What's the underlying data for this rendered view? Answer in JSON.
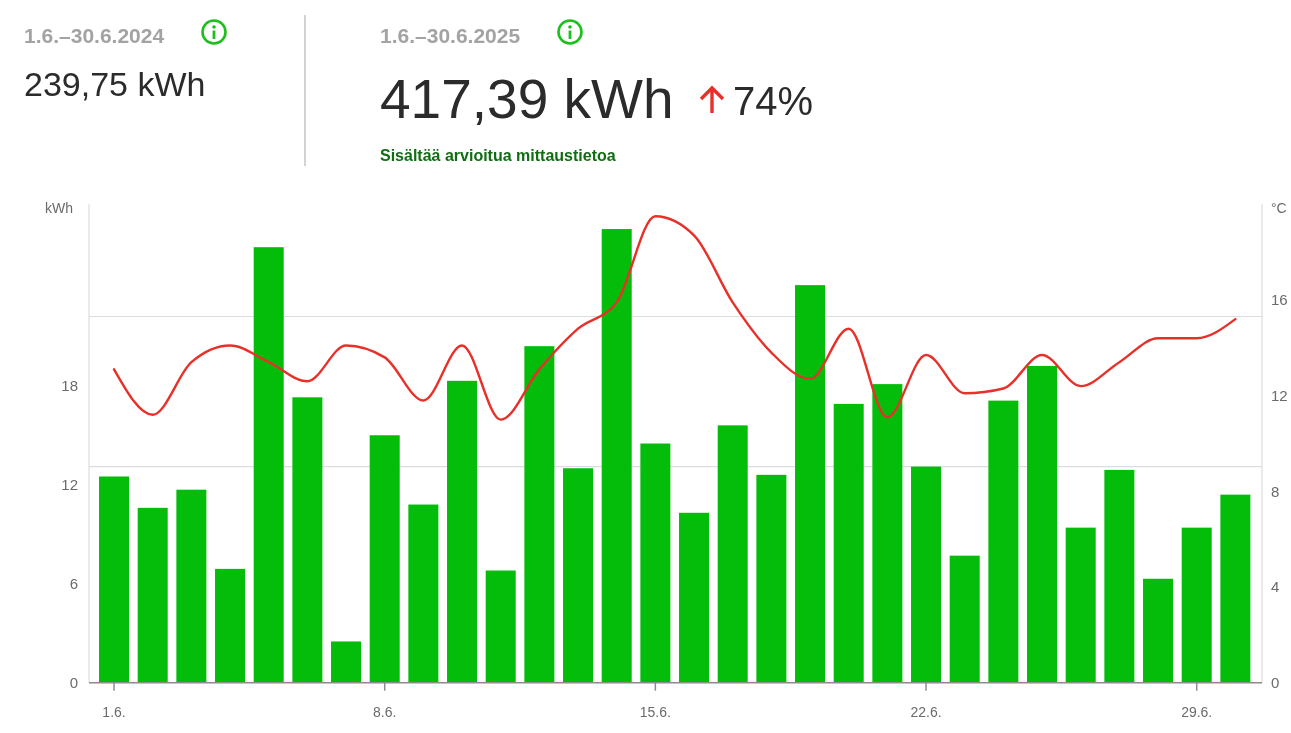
{
  "chart_data": {
    "type": "bar",
    "categories": [
      "1.6.",
      null,
      null,
      null,
      null,
      null,
      null,
      "8.6.",
      null,
      null,
      null,
      null,
      null,
      null,
      "15.6.",
      null,
      null,
      null,
      null,
      null,
      null,
      "22.6.",
      null,
      null,
      null,
      null,
      null,
      null,
      "29.6.",
      null
    ],
    "series": [
      {
        "type": "bar",
        "color": "#04bd0a",
        "values": [
          12.5,
          10.6,
          11.7,
          6.9,
          26.4,
          17.3,
          2.5,
          15.0,
          10.8,
          18.3,
          6.8,
          20.4,
          13.0,
          27.5,
          14.5,
          10.3,
          15.6,
          12.6,
          24.1,
          16.9,
          18.1,
          13.1,
          7.7,
          17.1,
          19.2,
          9.4,
          12.9,
          6.3,
          9.4,
          11.4
        ]
      },
      {
        "type": "line",
        "axis": "y2",
        "color": "#e8302a",
        "values": [
          13.1,
          11.2,
          13.4,
          14.1,
          13.4,
          12.6,
          14.1,
          13.6,
          11.8,
          14.1,
          11.0,
          13.1,
          14.8,
          15.9,
          19.5,
          18.7,
          15.9,
          13.8,
          12.7,
          14.8,
          11.1,
          13.7,
          12.1,
          12.3,
          13.7,
          12.4,
          13.4,
          14.4,
          14.4,
          15.2
        ]
      }
    ],
    "ylabel": "kWh",
    "y2label": "°C",
    "ylim": [
      0,
      29
    ],
    "yticks": [
      0,
      6,
      12,
      18
    ],
    "y2lim": [
      0,
      20
    ],
    "y2ticks": [
      0,
      4,
      8,
      12,
      16
    ],
    "ref_lines": [
      {
        "axis": "y",
        "value": 13.1,
        "color": "#dddddd"
      },
      {
        "axis": "y",
        "value": 22.2,
        "color": "#dddddd"
      }
    ],
    "annotations": [
      "1.6.–30.6.2024",
      "239,75 kWh",
      "1.6.–30.6.2025",
      "417,39 kWh",
      "74%",
      "Sisältää arvioitua mittaustietoa"
    ]
  }
}
